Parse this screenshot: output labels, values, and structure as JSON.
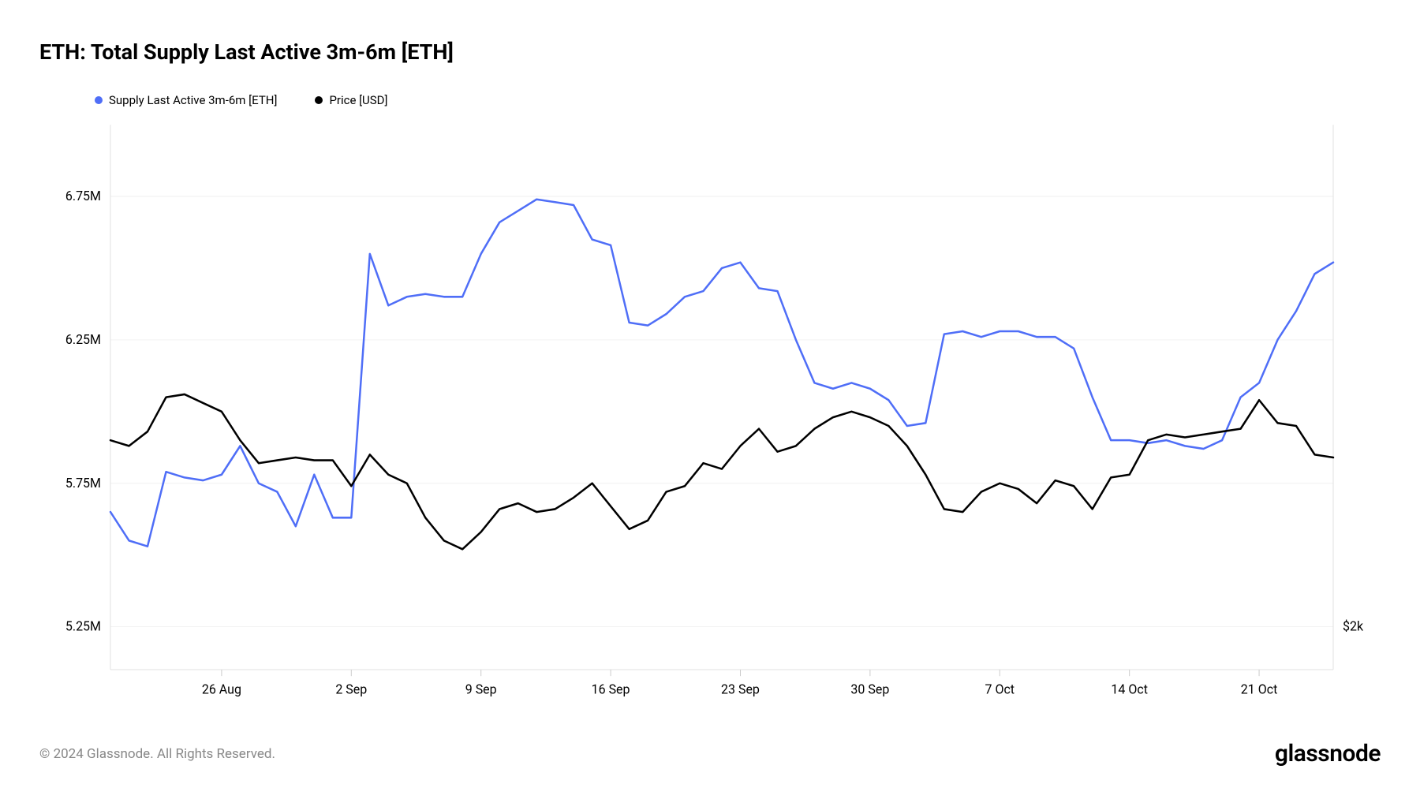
{
  "title": "ETH: Total Supply Last Active 3m-6m [ETH]",
  "legend": {
    "series1": {
      "label": "Supply Last Active 3m-6m [ETH]",
      "color": "#4f6ef7"
    },
    "series2": {
      "label": "Price [USD]",
      "color": "#000000"
    }
  },
  "chart": {
    "background_color": "#ffffff",
    "grid_color": "#f2f2f2",
    "axis_color": "#e0e0e0",
    "tick_color": "#cccccc",
    "label_color": "#000000",
    "label_fontsize": 16,
    "line_width": 2.5,
    "x": {
      "min": 0,
      "max": 66,
      "ticks": [
        {
          "pos": 6,
          "label": "26 Aug"
        },
        {
          "pos": 13,
          "label": "2 Sep"
        },
        {
          "pos": 20,
          "label": "9 Sep"
        },
        {
          "pos": 27,
          "label": "16 Sep"
        },
        {
          "pos": 34,
          "label": "23 Sep"
        },
        {
          "pos": 41,
          "label": "30 Sep"
        },
        {
          "pos": 48,
          "label": "7 Oct"
        },
        {
          "pos": 55,
          "label": "14 Oct"
        },
        {
          "pos": 62,
          "label": "21 Oct"
        }
      ]
    },
    "y_left": {
      "min": 5.1,
      "max": 7.0,
      "ticks": [
        {
          "pos": 5.25,
          "label": "5.25M"
        },
        {
          "pos": 5.75,
          "label": "5.75M"
        },
        {
          "pos": 6.25,
          "label": "6.25M"
        },
        {
          "pos": 6.75,
          "label": "6.75M"
        }
      ]
    },
    "y_right": {
      "ticks": [
        {
          "pos": 5.25,
          "label": "$2k"
        }
      ]
    },
    "series": [
      {
        "id": "supply",
        "color": "#4f6ef7",
        "y_axis": "left",
        "data": [
          [
            0,
            5.65
          ],
          [
            1,
            5.55
          ],
          [
            2,
            5.53
          ],
          [
            3,
            5.79
          ],
          [
            4,
            5.77
          ],
          [
            5,
            5.76
          ],
          [
            6,
            5.78
          ],
          [
            7,
            5.88
          ],
          [
            8,
            5.75
          ],
          [
            9,
            5.72
          ],
          [
            10,
            5.6
          ],
          [
            11,
            5.78
          ],
          [
            12,
            5.63
          ],
          [
            13,
            5.63
          ],
          [
            14,
            6.55
          ],
          [
            15,
            6.37
          ],
          [
            16,
            6.4
          ],
          [
            17,
            6.41
          ],
          [
            18,
            6.4
          ],
          [
            19,
            6.4
          ],
          [
            20,
            6.55
          ],
          [
            21,
            6.66
          ],
          [
            22,
            6.7
          ],
          [
            23,
            6.74
          ],
          [
            24,
            6.73
          ],
          [
            25,
            6.72
          ],
          [
            26,
            6.6
          ],
          [
            27,
            6.58
          ],
          [
            28,
            6.31
          ],
          [
            29,
            6.3
          ],
          [
            30,
            6.34
          ],
          [
            31,
            6.4
          ],
          [
            32,
            6.42
          ],
          [
            33,
            6.5
          ],
          [
            34,
            6.52
          ],
          [
            35,
            6.43
          ],
          [
            36,
            6.42
          ],
          [
            37,
            6.25
          ],
          [
            38,
            6.1
          ],
          [
            39,
            6.08
          ],
          [
            40,
            6.1
          ],
          [
            41,
            6.08
          ],
          [
            42,
            6.04
          ],
          [
            43,
            5.95
          ],
          [
            44,
            5.96
          ],
          [
            45,
            6.27
          ],
          [
            46,
            6.28
          ],
          [
            47,
            6.26
          ],
          [
            48,
            6.28
          ],
          [
            49,
            6.28
          ],
          [
            50,
            6.26
          ],
          [
            51,
            6.26
          ],
          [
            52,
            6.22
          ],
          [
            53,
            6.05
          ],
          [
            54,
            5.9
          ],
          [
            55,
            5.9
          ],
          [
            56,
            5.89
          ],
          [
            57,
            5.9
          ],
          [
            58,
            5.88
          ],
          [
            59,
            5.87
          ],
          [
            60,
            5.9
          ],
          [
            61,
            6.05
          ],
          [
            62,
            6.1
          ],
          [
            63,
            6.25
          ],
          [
            64,
            6.35
          ],
          [
            65,
            6.48
          ],
          [
            66,
            6.52
          ]
        ]
      },
      {
        "id": "price",
        "color": "#000000",
        "y_axis": "left",
        "data": [
          [
            0,
            5.9
          ],
          [
            1,
            5.88
          ],
          [
            2,
            5.93
          ],
          [
            3,
            6.05
          ],
          [
            4,
            6.06
          ],
          [
            5,
            6.03
          ],
          [
            6,
            6.0
          ],
          [
            7,
            5.9
          ],
          [
            8,
            5.82
          ],
          [
            9,
            5.83
          ],
          [
            10,
            5.84
          ],
          [
            11,
            5.83
          ],
          [
            12,
            5.83
          ],
          [
            13,
            5.74
          ],
          [
            14,
            5.85
          ],
          [
            15,
            5.78
          ],
          [
            16,
            5.75
          ],
          [
            17,
            5.63
          ],
          [
            18,
            5.55
          ],
          [
            19,
            5.52
          ],
          [
            20,
            5.58
          ],
          [
            21,
            5.66
          ],
          [
            22,
            5.68
          ],
          [
            23,
            5.65
          ],
          [
            24,
            5.66
          ],
          [
            25,
            5.7
          ],
          [
            26,
            5.75
          ],
          [
            27,
            5.67
          ],
          [
            28,
            5.59
          ],
          [
            29,
            5.62
          ],
          [
            30,
            5.72
          ],
          [
            31,
            5.74
          ],
          [
            32,
            5.82
          ],
          [
            33,
            5.8
          ],
          [
            34,
            5.88
          ],
          [
            35,
            5.94
          ],
          [
            36,
            5.86
          ],
          [
            37,
            5.88
          ],
          [
            38,
            5.94
          ],
          [
            39,
            5.98
          ],
          [
            40,
            6.0
          ],
          [
            41,
            5.98
          ],
          [
            42,
            5.95
          ],
          [
            43,
            5.88
          ],
          [
            44,
            5.78
          ],
          [
            45,
            5.66
          ],
          [
            46,
            5.65
          ],
          [
            47,
            5.72
          ],
          [
            48,
            5.75
          ],
          [
            49,
            5.73
          ],
          [
            50,
            5.68
          ],
          [
            51,
            5.76
          ],
          [
            52,
            5.74
          ],
          [
            53,
            5.66
          ],
          [
            54,
            5.77
          ],
          [
            55,
            5.78
          ],
          [
            56,
            5.9
          ],
          [
            57,
            5.92
          ],
          [
            58,
            5.91
          ],
          [
            59,
            5.92
          ],
          [
            60,
            5.93
          ],
          [
            61,
            5.94
          ],
          [
            62,
            6.04
          ],
          [
            63,
            5.96
          ],
          [
            64,
            5.95
          ],
          [
            65,
            5.85
          ],
          [
            66,
            5.84
          ]
        ]
      }
    ]
  },
  "footer": {
    "copyright": "© 2024 Glassnode. All Rights Reserved.",
    "brand": "glassnode"
  }
}
